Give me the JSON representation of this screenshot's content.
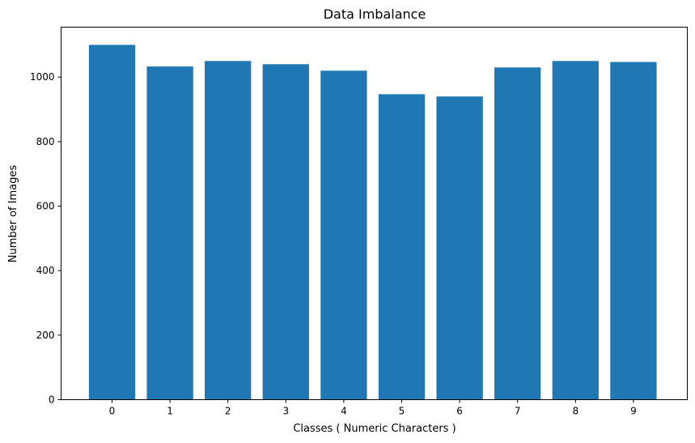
{
  "chart_data": {
    "type": "bar",
    "title": "Data Imbalance",
    "xlabel": "Classes ( Numeric Characters )",
    "ylabel": "Number of Images",
    "categories": [
      "0",
      "1",
      "2",
      "3",
      "4",
      "5",
      "6",
      "7",
      "8",
      "9"
    ],
    "values": [
      1100,
      1033,
      1050,
      1040,
      1020,
      947,
      940,
      1030,
      1050,
      1047
    ],
    "ylim": [
      0,
      1155
    ],
    "yticks": [
      0,
      200,
      400,
      600,
      800,
      1000
    ],
    "bar_color": "#1f77b4",
    "grid": false,
    "legend": "none"
  }
}
